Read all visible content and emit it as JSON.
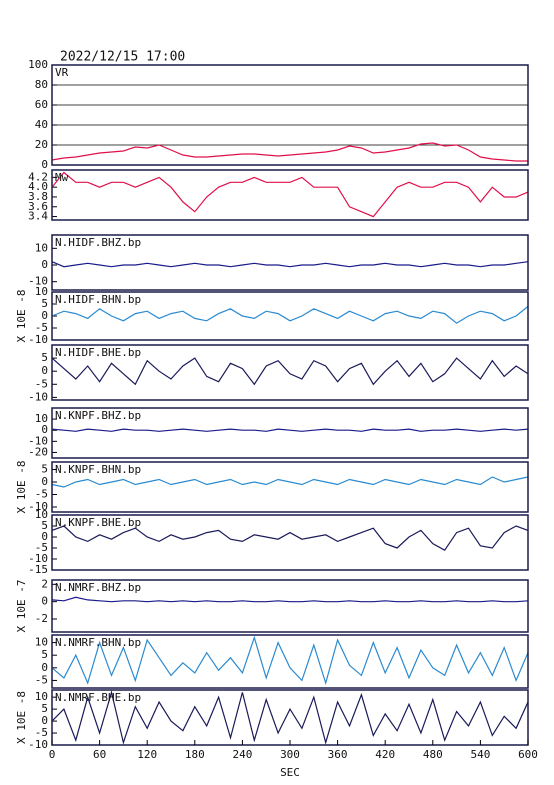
{
  "chart_data": [
    {
      "type": "line",
      "title": "2022/12/15 17:00",
      "label": "VR",
      "color": "#e0104a",
      "grid": true,
      "x": [
        0,
        15,
        30,
        45,
        60,
        75,
        90,
        105,
        120,
        135,
        150,
        165,
        180,
        195,
        210,
        225,
        240,
        255,
        270,
        285,
        300,
        315,
        330,
        345,
        360,
        375,
        390,
        405,
        420,
        435,
        450,
        465,
        480,
        495,
        510,
        525,
        540,
        555,
        570,
        585,
        600
      ],
      "values": [
        5,
        7,
        8,
        10,
        12,
        13,
        14,
        18,
        17,
        20,
        15,
        10,
        8,
        8,
        9,
        10,
        11,
        11,
        10,
        9,
        10,
        11,
        12,
        13,
        15,
        19,
        17,
        12,
        13,
        15,
        17,
        21,
        22,
        19,
        20,
        15,
        8,
        6,
        5,
        4,
        4
      ],
      "xlim": [
        0,
        600
      ],
      "ylim": [
        0,
        100
      ],
      "yticks": [
        0,
        20,
        40,
        60,
        80,
        100
      ]
    },
    {
      "type": "line",
      "label": "Mw",
      "color": "#e0104a",
      "x": [
        0,
        15,
        30,
        45,
        60,
        75,
        90,
        105,
        120,
        135,
        150,
        165,
        180,
        195,
        210,
        225,
        240,
        255,
        270,
        285,
        300,
        315,
        330,
        345,
        360,
        375,
        390,
        405,
        420,
        435,
        450,
        465,
        480,
        495,
        510,
        525,
        540,
        555,
        570,
        585,
        600
      ],
      "values": [
        4.0,
        4.3,
        4.1,
        4.1,
        4.0,
        4.1,
        4.1,
        4.0,
        4.1,
        4.2,
        4.0,
        3.7,
        3.5,
        3.8,
        4.0,
        4.1,
        4.1,
        4.2,
        4.1,
        4.1,
        4.1,
        4.2,
        4.0,
        4.0,
        4.0,
        3.6,
        3.5,
        3.4,
        3.7,
        4.0,
        4.1,
        4.0,
        4.0,
        4.1,
        4.1,
        4.0,
        3.7,
        4.0,
        3.8,
        3.8,
        3.9
      ],
      "xlim": [
        0,
        600
      ],
      "ylim": [
        3.33,
        4.35
      ],
      "yticks": [
        3.4,
        3.6,
        3.8,
        {
          "value": 4,
          "label": "4.0"
        },
        4.2
      ]
    },
    {
      "type": "line",
      "label": "N.HIDF.BHZ.bp",
      "color": "#1a1a8a",
      "x": [
        0,
        15,
        30,
        45,
        60,
        75,
        90,
        105,
        120,
        135,
        150,
        165,
        180,
        195,
        210,
        225,
        240,
        255,
        270,
        285,
        300,
        315,
        330,
        345,
        360,
        375,
        390,
        405,
        420,
        435,
        450,
        465,
        480,
        495,
        510,
        525,
        540,
        555,
        570,
        585,
        600
      ],
      "values": [
        2,
        -1,
        0,
        1,
        0,
        -1,
        0,
        0,
        1,
        0,
        -1,
        0,
        1,
        0,
        0,
        -1,
        0,
        1,
        0,
        0,
        -1,
        0,
        0,
        1,
        0,
        -1,
        0,
        0,
        1,
        0,
        0,
        -1,
        0,
        1,
        0,
        0,
        -1,
        0,
        0,
        1,
        2
      ],
      "xlim": [
        0,
        600
      ],
      "ylim": [
        -15,
        18
      ],
      "yticks": [
        -10,
        0,
        10
      ]
    },
    {
      "type": "line",
      "label": "N.HIDF.BHN.bp",
      "ylabel": "X 10E -8",
      "color": "#2a8ad0",
      "x": [
        0,
        15,
        30,
        45,
        60,
        75,
        90,
        105,
        120,
        135,
        150,
        165,
        180,
        195,
        210,
        225,
        240,
        255,
        270,
        285,
        300,
        315,
        330,
        345,
        360,
        375,
        390,
        405,
        420,
        435,
        450,
        465,
        480,
        495,
        510,
        525,
        540,
        555,
        570,
        585,
        600
      ],
      "values": [
        0,
        2,
        1,
        -1,
        3,
        0,
        -2,
        1,
        2,
        -1,
        1,
        2,
        -1,
        -2,
        1,
        3,
        0,
        -1,
        2,
        1,
        -2,
        0,
        3,
        1,
        -1,
        2,
        0,
        -2,
        1,
        2,
        0,
        -1,
        2,
        1,
        -3,
        0,
        2,
        1,
        -2,
        0,
        4
      ],
      "xlim": [
        0,
        600
      ],
      "ylim": [
        -10,
        10
      ],
      "yticks": [
        -10,
        -5,
        0,
        5,
        10
      ]
    },
    {
      "type": "line",
      "label": "N.HIDF.BHE.bp",
      "color": "#1a1a5a",
      "x": [
        0,
        15,
        30,
        45,
        60,
        75,
        90,
        105,
        120,
        135,
        150,
        165,
        180,
        195,
        210,
        225,
        240,
        255,
        270,
        285,
        300,
        315,
        330,
        345,
        360,
        375,
        390,
        405,
        420,
        435,
        450,
        465,
        480,
        495,
        510,
        525,
        540,
        555,
        570,
        585,
        600
      ],
      "values": [
        5,
        1,
        -3,
        2,
        -4,
        3,
        -1,
        -5,
        4,
        0,
        -3,
        2,
        5,
        -2,
        -4,
        3,
        1,
        -5,
        2,
        4,
        -1,
        -3,
        4,
        2,
        -4,
        1,
        3,
        -5,
        0,
        4,
        -2,
        3,
        -4,
        -1,
        5,
        1,
        -3,
        4,
        -2,
        2,
        -1
      ],
      "xlim": [
        0,
        600
      ],
      "ylim": [
        -11,
        10
      ],
      "yticks": [
        -10,
        -5,
        0,
        5
      ]
    },
    {
      "type": "line",
      "label": "N.KNPF.BHZ.bp",
      "color": "#1a1a8a",
      "x": [
        0,
        15,
        30,
        45,
        60,
        75,
        90,
        105,
        120,
        135,
        150,
        165,
        180,
        195,
        210,
        225,
        240,
        255,
        270,
        285,
        300,
        315,
        330,
        345,
        360,
        375,
        390,
        405,
        420,
        435,
        450,
        465,
        480,
        495,
        510,
        525,
        540,
        555,
        570,
        585,
        600
      ],
      "values": [
        1,
        0,
        -1,
        1,
        0,
        -1,
        1,
        0,
        0,
        -1,
        0,
        1,
        0,
        -1,
        0,
        1,
        0,
        0,
        -1,
        1,
        0,
        -1,
        0,
        1,
        0,
        0,
        -1,
        1,
        0,
        0,
        1,
        -1,
        0,
        0,
        1,
        0,
        -1,
        0,
        1,
        0,
        1
      ],
      "xlim": [
        0,
        600
      ],
      "ylim": [
        -25,
        20
      ],
      "yticks": [
        -20,
        -10,
        0,
        10
      ]
    },
    {
      "type": "line",
      "label": "N.KNPF.BHN.bp",
      "ylabel": "X 10E -8",
      "color": "#2a8ad0",
      "x": [
        0,
        15,
        30,
        45,
        60,
        75,
        90,
        105,
        120,
        135,
        150,
        165,
        180,
        195,
        210,
        225,
        240,
        255,
        270,
        285,
        300,
        315,
        330,
        345,
        360,
        375,
        390,
        405,
        420,
        435,
        450,
        465,
        480,
        495,
        510,
        525,
        540,
        555,
        570,
        585,
        600
      ],
      "values": [
        -1,
        -2,
        0,
        1,
        -1,
        0,
        1,
        -1,
        0,
        1,
        -1,
        0,
        1,
        -1,
        0,
        1,
        -1,
        0,
        -1,
        1,
        0,
        -1,
        1,
        0,
        -1,
        1,
        0,
        -1,
        1,
        0,
        -1,
        1,
        0,
        -1,
        1,
        0,
        -1,
        2,
        0,
        1,
        2
      ],
      "xlim": [
        0,
        600
      ],
      "ylim": [
        -12,
        8
      ],
      "yticks": [
        -10,
        -5,
        0,
        5
      ]
    },
    {
      "type": "line",
      "label": "N.KNPF.BHE.bp",
      "color": "#1a1a5a",
      "x": [
        0,
        15,
        30,
        45,
        60,
        75,
        90,
        105,
        120,
        135,
        150,
        165,
        180,
        195,
        210,
        225,
        240,
        255,
        270,
        285,
        300,
        315,
        330,
        345,
        360,
        375,
        390,
        405,
        420,
        435,
        450,
        465,
        480,
        495,
        510,
        525,
        540,
        555,
        570,
        585,
        600
      ],
      "values": [
        3,
        5,
        0,
        -2,
        1,
        -1,
        2,
        4,
        0,
        -2,
        1,
        -1,
        0,
        2,
        3,
        -1,
        -2,
        1,
        0,
        -1,
        2,
        -1,
        0,
        1,
        -2,
        0,
        2,
        4,
        -3,
        -5,
        0,
        3,
        -3,
        -6,
        2,
        4,
        -4,
        -5,
        2,
        5,
        3
      ],
      "xlim": [
        0,
        600
      ],
      "ylim": [
        -15,
        10
      ],
      "yticks": [
        -15,
        -10,
        -5,
        0,
        5,
        10
      ]
    },
    {
      "type": "line",
      "label": "N.NMRF.BHZ.bp",
      "ylabel": "X 10E -7",
      "color": "#1a1a8a",
      "x": [
        0,
        15,
        30,
        45,
        60,
        75,
        90,
        105,
        120,
        135,
        150,
        165,
        180,
        195,
        210,
        225,
        240,
        255,
        270,
        285,
        300,
        315,
        330,
        345,
        360,
        375,
        390,
        405,
        420,
        435,
        450,
        465,
        480,
        495,
        510,
        525,
        540,
        555,
        570,
        585,
        600
      ],
      "values": [
        0.2,
        0.1,
        0.5,
        0.2,
        0.1,
        0,
        0.1,
        0.1,
        0,
        0.1,
        0,
        0.1,
        0,
        0.1,
        0,
        0,
        0.1,
        0,
        0,
        0.1,
        0,
        0,
        0.1,
        0,
        0,
        0.1,
        0,
        0,
        0.1,
        0,
        0,
        0.1,
        0,
        0,
        0.1,
        0,
        0,
        0.1,
        0,
        0,
        0.1
      ],
      "xlim": [
        0,
        600
      ],
      "ylim": [
        -3.5,
        2.5
      ],
      "yticks": [
        -2,
        0,
        2
      ]
    },
    {
      "type": "line",
      "label": "N.NMRF.BHN.bp",
      "color": "#2a8ad0",
      "x": [
        0,
        15,
        30,
        45,
        60,
        75,
        90,
        105,
        120,
        135,
        150,
        165,
        180,
        195,
        210,
        225,
        240,
        255,
        270,
        285,
        300,
        315,
        330,
        345,
        360,
        375,
        390,
        405,
        420,
        435,
        450,
        465,
        480,
        495,
        510,
        525,
        540,
        555,
        570,
        585,
        600
      ],
      "values": [
        0,
        -4,
        5,
        -6,
        10,
        -3,
        8,
        -5,
        11,
        4,
        -3,
        2,
        -2,
        6,
        -1,
        4,
        -2,
        12,
        -4,
        10,
        0,
        -5,
        9,
        -6,
        11,
        1,
        -3,
        10,
        -2,
        8,
        -4,
        7,
        0,
        -3,
        9,
        -2,
        6,
        -3,
        8,
        -5,
        6
      ],
      "xlim": [
        0,
        600
      ],
      "ylim": [
        -8,
        13
      ],
      "yticks": [
        -5,
        0,
        5,
        10
      ]
    },
    {
      "type": "line",
      "label": "N.NMRF.BHE.bp",
      "ylabel": "X 10E -8",
      "xlabel": "SEC",
      "color": "#1a1a5a",
      "x": [
        0,
        15,
        30,
        45,
        60,
        75,
        90,
        105,
        120,
        135,
        150,
        165,
        180,
        195,
        210,
        225,
        240,
        255,
        270,
        285,
        300,
        315,
        330,
        345,
        360,
        375,
        390,
        405,
        420,
        435,
        450,
        465,
        480,
        495,
        510,
        525,
        540,
        555,
        570,
        585,
        600
      ],
      "values": [
        0,
        5,
        -8,
        10,
        -5,
        12,
        -9,
        6,
        -3,
        8,
        0,
        -4,
        6,
        -2,
        10,
        -7,
        12,
        -8,
        9,
        -5,
        5,
        -3,
        10,
        -9,
        8,
        -2,
        11,
        -6,
        3,
        -4,
        7,
        -5,
        9,
        -8,
        4,
        -2,
        8,
        -6,
        2,
        -3,
        8
      ],
      "xlim": [
        0,
        600
      ],
      "ylim": [
        -10,
        13
      ],
      "yticks": [
        -10,
        -5,
        0,
        5,
        10
      ],
      "xticks": [
        0,
        60,
        120,
        180,
        240,
        300,
        360,
        420,
        480,
        540,
        600
      ]
    }
  ]
}
